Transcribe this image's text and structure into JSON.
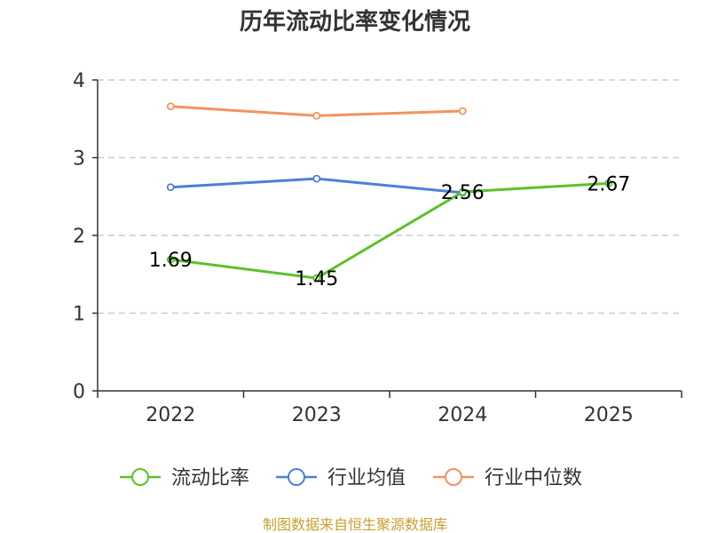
{
  "chart_data": {
    "type": "line",
    "title": "历年流动比率变化情况",
    "categories": [
      "2022",
      "2023",
      "2024",
      "2025"
    ],
    "ylim": [
      0,
      4
    ],
    "yticks": [
      0,
      1,
      2,
      3,
      4
    ],
    "ytick_labels": [
      "0",
      "1",
      "2",
      "3",
      "4"
    ],
    "grid": true,
    "legend_position": "bottom",
    "series": [
      {
        "name": "流动比率",
        "color": "#5cc12a",
        "values": [
          1.69,
          1.45,
          2.56,
          2.67
        ],
        "labels": [
          "1.69",
          "1.45",
          "2.56",
          "2.67"
        ]
      },
      {
        "name": "行业均值",
        "color": "#4e7fd8",
        "values": [
          2.62,
          2.73,
          2.55,
          null
        ],
        "labels": []
      },
      {
        "name": "行业中位数",
        "color": "#f5925e",
        "values": [
          3.66,
          3.54,
          3.6,
          null
        ],
        "labels": []
      }
    ],
    "source": "制图数据来自恒生聚源数据库"
  }
}
